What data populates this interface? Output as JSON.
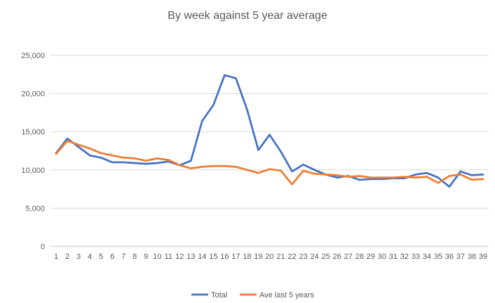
{
  "chart_data": {
    "type": "line",
    "title": "By week against 5 year average",
    "xlabel": "",
    "ylabel": "",
    "categories": [
      1,
      2,
      3,
      4,
      5,
      6,
      7,
      8,
      9,
      10,
      11,
      12,
      13,
      14,
      15,
      16,
      17,
      18,
      19,
      20,
      21,
      22,
      23,
      24,
      25,
      26,
      27,
      28,
      29,
      30,
      31,
      32,
      33,
      34,
      35,
      36,
      37,
      38,
      39
    ],
    "ylim": [
      0,
      25000
    ],
    "yticks": [
      "0",
      "5,000",
      "10,000",
      "15,000",
      "20,000",
      "25,000"
    ],
    "grid": true,
    "legend_position": "bottom",
    "series": [
      {
        "name": "Total",
        "color": "#4472C4",
        "values": [
          12200,
          14100,
          13000,
          11900,
          11600,
          11000,
          11000,
          10900,
          10800,
          10900,
          11100,
          10600,
          11200,
          16400,
          18500,
          22400,
          22000,
          17900,
          12600,
          14600,
          12400,
          9800,
          10700,
          10000,
          9400,
          9000,
          9200,
          8700,
          8800,
          8800,
          8900,
          8900,
          9400,
          9600,
          9000,
          7800,
          9800,
          9300,
          9400
        ]
      },
      {
        "name": "Ave last 5 years",
        "color": "#ED7D31",
        "values": [
          12100,
          13800,
          13300,
          12800,
          12200,
          11900,
          11600,
          11500,
          11200,
          11500,
          11300,
          10600,
          10200,
          10400,
          10500,
          10500,
          10400,
          10000,
          9600,
          10100,
          9900,
          8100,
          9900,
          9500,
          9400,
          9300,
          9100,
          9200,
          9000,
          9000,
          9000,
          9100,
          9000,
          9100,
          8300,
          9200,
          9400,
          8700,
          8800
        ]
      }
    ]
  }
}
